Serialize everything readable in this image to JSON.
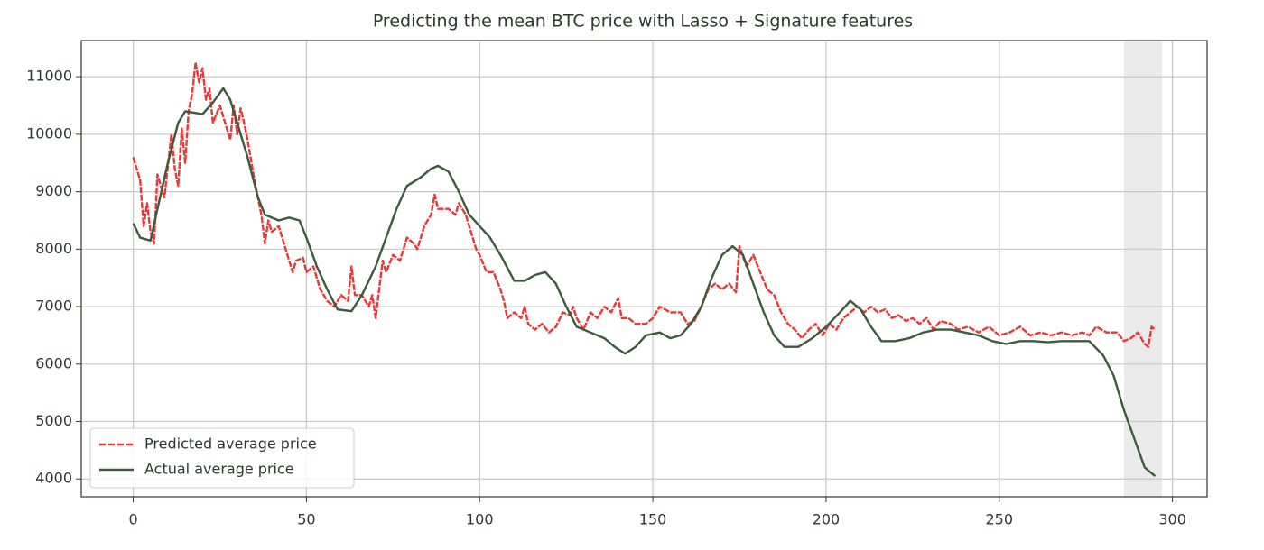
{
  "chart_data": {
    "type": "line",
    "title": "Predicting the mean BTC price with Lasso + Signature features",
    "xlim": [
      -15,
      310
    ],
    "ylim": [
      3690,
      11630
    ],
    "xticks": [
      0,
      50,
      100,
      150,
      200,
      250,
      300
    ],
    "yticks": [
      4000,
      5000,
      6000,
      7000,
      8000,
      9000,
      10000,
      11000
    ],
    "grid": true,
    "legend": "lower left",
    "shaded_span": [
      286,
      297
    ],
    "shaded_color": "#ebebeb",
    "series": [
      {
        "name": "Predicted average price",
        "color": "#e8393a",
        "linestyle": "dashed",
        "x": [
          0,
          2,
          3,
          4,
          5,
          6,
          7,
          9,
          11,
          12,
          13,
          14,
          15,
          16,
          17,
          18,
          19,
          20,
          21,
          22,
          23,
          25,
          27,
          28,
          29,
          30,
          31,
          32,
          33,
          35,
          37,
          38,
          39,
          40,
          42,
          44,
          46,
          47,
          49,
          50,
          52,
          54,
          56,
          58,
          60,
          62,
          63,
          64,
          66,
          68,
          69,
          70,
          72,
          73,
          75,
          77,
          79,
          81,
          82,
          84,
          86,
          87,
          88,
          91,
          93,
          94,
          96,
          97,
          99,
          100,
          102,
          104,
          106,
          107,
          108,
          110,
          112,
          113,
          114,
          116,
          118,
          120,
          122,
          124,
          126,
          127,
          128,
          130,
          132,
          134,
          136,
          138,
          140,
          141,
          143,
          145,
          148,
          150,
          152,
          155,
          158,
          160,
          162,
          164,
          166,
          168,
          170,
          172,
          174,
          175,
          177,
          179,
          181,
          183,
          185,
          187,
          189,
          191,
          193,
          195,
          197,
          199,
          201,
          203,
          205,
          207,
          209,
          211,
          213,
          215,
          217,
          219,
          221,
          223,
          225,
          227,
          229,
          231,
          233,
          236,
          238,
          241,
          244,
          247,
          250,
          253,
          256,
          259,
          262,
          265,
          268,
          271,
          274,
          276,
          278,
          281,
          284,
          286,
          288,
          290,
          292,
          293,
          294,
          295
        ],
        "values": [
          9600,
          9200,
          8400,
          8800,
          8300,
          8100,
          9300,
          8900,
          10000,
          9400,
          9100,
          10100,
          9500,
          10400,
          10700,
          11250,
          10900,
          11150,
          10600,
          10800,
          10200,
          10500,
          10100,
          9900,
          10500,
          10000,
          10450,
          10200,
          9900,
          9200,
          8600,
          8100,
          8500,
          8300,
          8400,
          8000,
          7600,
          7800,
          7850,
          7600,
          7700,
          7300,
          7100,
          7000,
          7200,
          7100,
          7700,
          7200,
          7200,
          7000,
          7200,
          6800,
          7800,
          7600,
          7900,
          7800,
          8200,
          8100,
          8000,
          8400,
          8600,
          8950,
          8700,
          8700,
          8600,
          8800,
          8600,
          8400,
          8000,
          7900,
          7600,
          7600,
          7300,
          7100,
          6800,
          6900,
          6800,
          7000,
          6700,
          6600,
          6700,
          6550,
          6650,
          6900,
          6850,
          7000,
          6800,
          6600,
          6900,
          6800,
          7000,
          6900,
          7150,
          6800,
          6800,
          6700,
          6700,
          6800,
          7000,
          6900,
          6900,
          6700,
          6750,
          7000,
          7300,
          7400,
          7300,
          7400,
          7250,
          8050,
          7700,
          7900,
          7600,
          7300,
          7200,
          6900,
          6700,
          6600,
          6450,
          6600,
          6700,
          6500,
          6700,
          6600,
          6800,
          6900,
          7000,
          6900,
          7000,
          6900,
          6950,
          6800,
          6850,
          6750,
          6800,
          6700,
          6800,
          6600,
          6750,
          6700,
          6600,
          6650,
          6550,
          6650,
          6500,
          6550,
          6650,
          6500,
          6550,
          6500,
          6550,
          6500,
          6550,
          6500,
          6650,
          6550,
          6550,
          6400,
          6450,
          6550,
          6350,
          6300,
          6650,
          6600
        ]
      },
      {
        "name": "Actual average price",
        "color": "#3d5a3d",
        "linestyle": "solid",
        "x": [
          0,
          2,
          5,
          7,
          10,
          13,
          15,
          20,
          23,
          26,
          28,
          30,
          33,
          36,
          38,
          42,
          45,
          48,
          50,
          53,
          56,
          59,
          63,
          66,
          70,
          73,
          76,
          79,
          83,
          86,
          88,
          91,
          94,
          97,
          100,
          103,
          106,
          110,
          113,
          116,
          119,
          122,
          125,
          128,
          132,
          136,
          139,
          142,
          145,
          148,
          152,
          155,
          158,
          161,
          164,
          167,
          170,
          173,
          176,
          179,
          182,
          185,
          188,
          192,
          196,
          200,
          204,
          207,
          210,
          213,
          216,
          220,
          224,
          228,
          232,
          236,
          240,
          244,
          248,
          252,
          256,
          260,
          264,
          268,
          272,
          276,
          280,
          283,
          286,
          289,
          292,
          295
        ],
        "values": [
          8450,
          8200,
          8150,
          8700,
          9500,
          10200,
          10400,
          10350,
          10550,
          10800,
          10600,
          10200,
          9600,
          8900,
          8600,
          8500,
          8550,
          8500,
          8200,
          7700,
          7300,
          6950,
          6920,
          7200,
          7700,
          8200,
          8700,
          9100,
          9250,
          9400,
          9450,
          9350,
          9000,
          8600,
          8400,
          8200,
          7900,
          7450,
          7450,
          7550,
          7600,
          7400,
          7000,
          6650,
          6550,
          6450,
          6300,
          6180,
          6300,
          6500,
          6550,
          6450,
          6500,
          6700,
          7000,
          7500,
          7900,
          8050,
          7900,
          7400,
          6900,
          6500,
          6300,
          6300,
          6450,
          6650,
          6900,
          7100,
          6950,
          6650,
          6400,
          6400,
          6450,
          6550,
          6600,
          6600,
          6550,
          6500,
          6400,
          6350,
          6400,
          6400,
          6380,
          6400,
          6400,
          6400,
          6150,
          5800,
          5200,
          4700,
          4200,
          4050
        ]
      }
    ]
  }
}
